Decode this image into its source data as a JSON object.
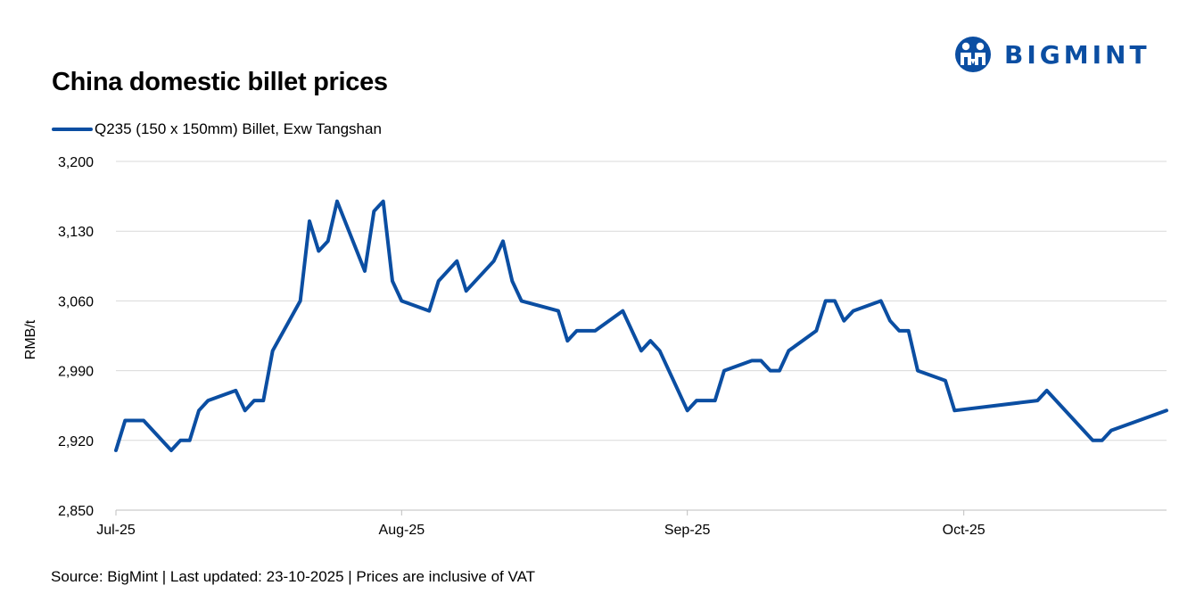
{
  "brand": {
    "name": "BIGMINT",
    "color": "#0B4EA2",
    "logo_icon": "bigmint-people-icon"
  },
  "footer": {
    "source": "Source: BigMint | Last updated: 23-10-2025 | Prices are inclusive of VAT"
  },
  "chart_data": {
    "type": "line",
    "title": "China domestic billet prices",
    "ylabel": "RMB/t",
    "xlabel": "",
    "ylim": [
      2850,
      3200
    ],
    "yticks": [
      2850,
      2920,
      2990,
      3060,
      3130,
      3200
    ],
    "ytick_labels": [
      "2,850",
      "2,920",
      "2,990",
      "3,060",
      "3,130",
      "3,200"
    ],
    "xlim": [
      "2025-07-01",
      "2025-10-23"
    ],
    "xticks": [
      "2025-07-01",
      "2025-08-01",
      "2025-09-01",
      "2025-10-01"
    ],
    "xtick_labels": [
      "Jul-25",
      "Aug-25",
      "Sep-25",
      "Oct-25"
    ],
    "grid": "horizontal",
    "legend_position": "top-left",
    "series": [
      {
        "name": "Q235 (150 x 150mm) Billet, Exw Tangshan",
        "color": "#0B4EA2",
        "points": [
          [
            "2025-07-01",
            2910
          ],
          [
            "2025-07-02",
            2940
          ],
          [
            "2025-07-04",
            2940
          ],
          [
            "2025-07-07",
            2910
          ],
          [
            "2025-07-08",
            2920
          ],
          [
            "2025-07-09",
            2920
          ],
          [
            "2025-07-10",
            2950
          ],
          [
            "2025-07-11",
            2960
          ],
          [
            "2025-07-14",
            2970
          ],
          [
            "2025-07-15",
            2950
          ],
          [
            "2025-07-16",
            2960
          ],
          [
            "2025-07-17",
            2960
          ],
          [
            "2025-07-18",
            3010
          ],
          [
            "2025-07-21",
            3060
          ],
          [
            "2025-07-22",
            3140
          ],
          [
            "2025-07-23",
            3110
          ],
          [
            "2025-07-24",
            3120
          ],
          [
            "2025-07-25",
            3160
          ],
          [
            "2025-07-28",
            3090
          ],
          [
            "2025-07-29",
            3150
          ],
          [
            "2025-07-30",
            3160
          ],
          [
            "2025-07-31",
            3080
          ],
          [
            "2025-08-01",
            3060
          ],
          [
            "2025-08-04",
            3050
          ],
          [
            "2025-08-05",
            3080
          ],
          [
            "2025-08-07",
            3100
          ],
          [
            "2025-08-08",
            3070
          ],
          [
            "2025-08-11",
            3100
          ],
          [
            "2025-08-12",
            3120
          ],
          [
            "2025-08-13",
            3080
          ],
          [
            "2025-08-14",
            3060
          ],
          [
            "2025-08-18",
            3050
          ],
          [
            "2025-08-19",
            3020
          ],
          [
            "2025-08-20",
            3030
          ],
          [
            "2025-08-22",
            3030
          ],
          [
            "2025-08-25",
            3050
          ],
          [
            "2025-08-27",
            3010
          ],
          [
            "2025-08-28",
            3020
          ],
          [
            "2025-08-29",
            3010
          ],
          [
            "2025-09-01",
            2950
          ],
          [
            "2025-09-02",
            2960
          ],
          [
            "2025-09-04",
            2960
          ],
          [
            "2025-09-05",
            2990
          ],
          [
            "2025-09-08",
            3000
          ],
          [
            "2025-09-09",
            3000
          ],
          [
            "2025-09-10",
            2990
          ],
          [
            "2025-09-11",
            2990
          ],
          [
            "2025-09-12",
            3010
          ],
          [
            "2025-09-15",
            3030
          ],
          [
            "2025-09-16",
            3060
          ],
          [
            "2025-09-17",
            3060
          ],
          [
            "2025-09-18",
            3040
          ],
          [
            "2025-09-19",
            3050
          ],
          [
            "2025-09-22",
            3060
          ],
          [
            "2025-09-23",
            3040
          ],
          [
            "2025-09-24",
            3030
          ],
          [
            "2025-09-25",
            3030
          ],
          [
            "2025-09-26",
            2990
          ],
          [
            "2025-09-29",
            2980
          ],
          [
            "2025-09-30",
            2950
          ],
          [
            "2025-10-09",
            2960
          ],
          [
            "2025-10-10",
            2970
          ],
          [
            "2025-10-14",
            2930
          ],
          [
            "2025-10-15",
            2920
          ],
          [
            "2025-10-16",
            2920
          ],
          [
            "2025-10-17",
            2930
          ],
          [
            "2025-10-23",
            2950
          ]
        ]
      }
    ]
  }
}
